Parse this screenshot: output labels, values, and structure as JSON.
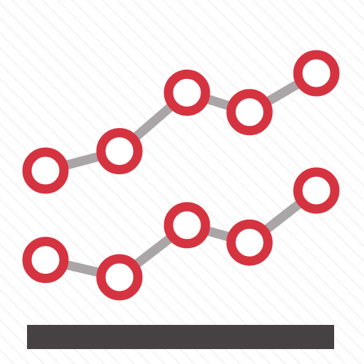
{
  "icon": {
    "name": "line-chart-icon",
    "colors": {
      "marker_stroke": "#d63340",
      "marker_fill": "#ffffff",
      "connector": "#aaa5a7",
      "baseline": "#464143",
      "background_lines": "#e8e8e8"
    },
    "series": [
      {
        "values": [
          1,
          2,
          5,
          4,
          6
        ]
      },
      {
        "values": [
          2,
          1,
          4,
          3,
          6
        ]
      }
    ],
    "points_per_series": 5
  }
}
